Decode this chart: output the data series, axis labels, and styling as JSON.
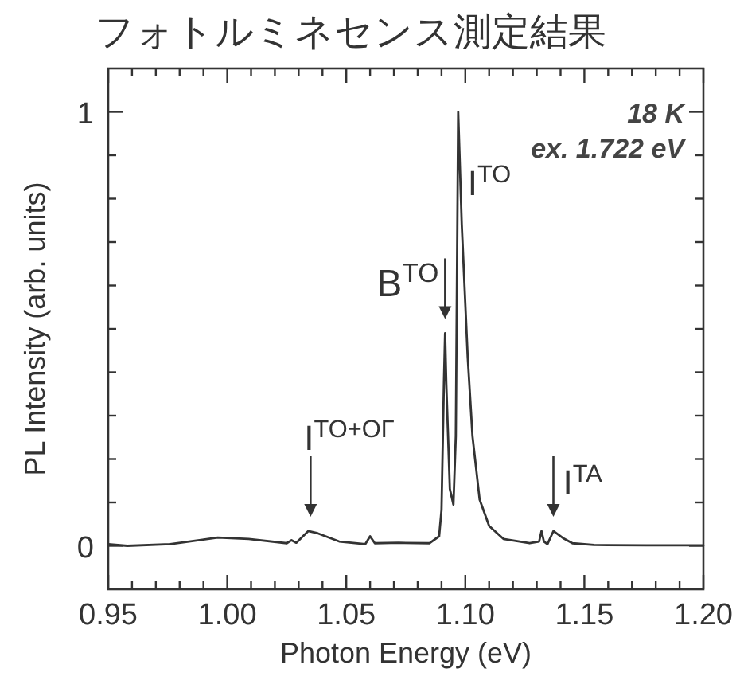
{
  "chart_data": {
    "type": "line",
    "title": "フォトルミネセンス測定結果",
    "xlabel": "Photon Energy (eV)",
    "ylabel": "PL Intensity (arb. units)",
    "x": [
      0.95,
      0.958,
      0.976,
      0.996,
      1.009,
      1.025,
      1.027,
      1.029,
      1.034,
      1.038,
      1.047,
      1.058,
      1.06,
      1.062,
      1.072,
      1.085,
      1.089,
      1.09,
      1.091,
      1.0915,
      1.092,
      1.0935,
      1.095,
      1.096,
      1.097,
      1.0985,
      1.101,
      1.103,
      1.106,
      1.11,
      1.116,
      1.127,
      1.131,
      1.132,
      1.133,
      1.1345,
      1.137,
      1.141,
      1.145,
      1.154,
      1.176,
      1.2
    ],
    "series": [
      {
        "color": "#333333",
        "values": [
          0.004,
          0.0,
          0.004,
          0.019,
          0.016,
          0.006,
          0.013,
          0.007,
          0.034,
          0.029,
          0.01,
          0.004,
          0.022,
          0.006,
          0.007,
          0.006,
          0.022,
          0.083,
          0.375,
          0.49,
          0.375,
          0.131,
          0.095,
          0.253,
          1.0,
          0.74,
          0.435,
          0.253,
          0.107,
          0.046,
          0.016,
          0.006,
          0.01,
          0.034,
          0.01,
          0.004,
          0.034,
          0.018,
          0.006,
          0.002,
          0.001,
          0.001
        ]
      }
    ],
    "xlim": [
      0.95,
      1.2
    ],
    "ylim": [
      -0.1,
      1.1
    ],
    "xticks": [
      0.95,
      {
        "value": 0.96,
        "label": null
      },
      {
        "value": 0.97,
        "label": null
      },
      {
        "value": 0.98,
        "label": null
      },
      {
        "value": 0.99,
        "label": null
      },
      {
        "value": 1.0,
        "label": "1.00"
      },
      {
        "value": 1.01,
        "label": null
      },
      {
        "value": 1.02,
        "label": null
      },
      {
        "value": 1.03,
        "label": null
      },
      {
        "value": 1.04,
        "label": null
      },
      1.05,
      {
        "value": 1.06,
        "label": null
      },
      {
        "value": 1.07,
        "label": null
      },
      {
        "value": 1.08,
        "label": null
      },
      {
        "value": 1.09,
        "label": null
      },
      {
        "value": 1.1,
        "label": "1.10"
      },
      {
        "value": 1.11,
        "label": null
      },
      {
        "value": 1.12,
        "label": null
      },
      {
        "value": 1.13,
        "label": null
      },
      {
        "value": 1.14,
        "label": null
      },
      1.15,
      {
        "value": 1.16,
        "label": null
      },
      {
        "value": 1.17,
        "label": null
      },
      {
        "value": 1.18,
        "label": null
      },
      {
        "value": 1.19,
        "label": null
      },
      {
        "value": 1.2,
        "label": "1.20"
      }
    ],
    "yticks": [
      0,
      {
        "value": 0.1,
        "label": null
      },
      {
        "value": 0.2,
        "label": null
      },
      {
        "value": 0.3,
        "label": null
      },
      {
        "value": 0.4,
        "label": null
      },
      {
        "value": 0.5,
        "label": null
      },
      {
        "value": 0.6,
        "label": null
      },
      {
        "value": 0.7,
        "label": null
      },
      {
        "value": 0.8,
        "label": null
      },
      {
        "value": 0.9,
        "label": null
      },
      1
    ],
    "grid": false,
    "marker": "none",
    "line_style": "solid",
    "annotations": [
      "18 K",
      "ex. 1.722 eV",
      {
        "text": "I$^{TO+OΓ}$",
        "x": 1.035,
        "y": 0.034
      },
      {
        "text": "B$^{TO}$",
        "x": 1.0915,
        "y": 0.49
      },
      {
        "text": "I$^{TO}$",
        "x": 1.097,
        "y": 1.0
      },
      {
        "text": "I$^{TA}$",
        "x": 1.137,
        "y": 0.034
      }
    ]
  }
}
